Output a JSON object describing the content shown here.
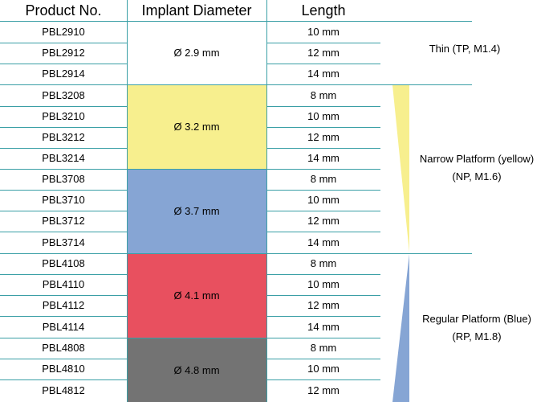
{
  "headers": {
    "product": "Product No.",
    "diameter": "Implant Diameter",
    "length": "Length"
  },
  "rows": [
    {
      "product": "PBL2910",
      "length": "10 mm"
    },
    {
      "product": "PBL2912",
      "length": "12 mm"
    },
    {
      "product": "PBL2914",
      "length": "14 mm"
    },
    {
      "product": "PBL3208",
      "length": "8 mm"
    },
    {
      "product": "PBL3210",
      "length": "10 mm"
    },
    {
      "product": "PBL3212",
      "length": "12 mm"
    },
    {
      "product": "PBL3214",
      "length": "14 mm"
    },
    {
      "product": "PBL3708",
      "length": "8 mm"
    },
    {
      "product": "PBL3710",
      "length": "10 mm"
    },
    {
      "product": "PBL3712",
      "length": "12 mm"
    },
    {
      "product": "PBL3714",
      "length": "14 mm"
    },
    {
      "product": "PBL4108",
      "length": "8 mm"
    },
    {
      "product": "PBL4110",
      "length": "10 mm"
    },
    {
      "product": "PBL4112",
      "length": "12 mm"
    },
    {
      "product": "PBL4114",
      "length": "14 mm"
    },
    {
      "product": "PBL4808",
      "length": "8 mm"
    },
    {
      "product": "PBL4810",
      "length": "10 mm"
    },
    {
      "product": "PBL4812",
      "length": "12 mm"
    }
  ],
  "diameters": [
    {
      "label": "Ø 2.9 mm",
      "color": "#ffffff"
    },
    {
      "label": "Ø 3.2 mm",
      "color": "#f7ef8e"
    },
    {
      "label": "Ø 3.7 mm",
      "color": "#86a5d4"
    },
    {
      "label": "Ø 4.1 mm",
      "color": "#e8505f"
    },
    {
      "label": "Ø 4.8 mm",
      "color": "#737373"
    }
  ],
  "platforms": {
    "thin": {
      "line1": "Thin (TP, M1.4)"
    },
    "narrow": {
      "line1": "Narrow Platform (yellow)",
      "line2": "(NP, M1.6)",
      "color": "#f7ef8e"
    },
    "regular": {
      "line1": "Regular Platform (Blue)",
      "line2": "(RP, M1.8)",
      "color": "#86a5d4"
    }
  }
}
